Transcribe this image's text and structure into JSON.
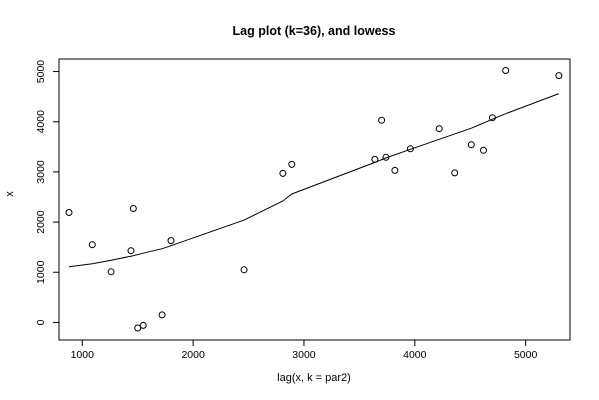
{
  "chart_data": {
    "type": "scatter",
    "title": "Lag plot (k=36), and lowess",
    "xlabel": "lag(x, k = par2)",
    "ylabel": "x",
    "xlim": [
      790,
      5400
    ],
    "ylim": [
      -350,
      5250
    ],
    "xticks": [
      1000,
      2000,
      3000,
      4000,
      5000
    ],
    "yticks": [
      0,
      1000,
      2000,
      3000,
      4000,
      5000
    ],
    "grid": false,
    "legend": "none",
    "points": [
      {
        "x": 880,
        "y": 2190
      },
      {
        "x": 1090,
        "y": 1550
      },
      {
        "x": 1260,
        "y": 1010
      },
      {
        "x": 1440,
        "y": 1430
      },
      {
        "x": 1460,
        "y": 2270
      },
      {
        "x": 1500,
        "y": -110
      },
      {
        "x": 1550,
        "y": -60
      },
      {
        "x": 1720,
        "y": 150
      },
      {
        "x": 1800,
        "y": 1630
      },
      {
        "x": 2460,
        "y": 1050
      },
      {
        "x": 2810,
        "y": 2970
      },
      {
        "x": 2890,
        "y": 3150
      },
      {
        "x": 3640,
        "y": 3250
      },
      {
        "x": 3700,
        "y": 4030
      },
      {
        "x": 3740,
        "y": 3290
      },
      {
        "x": 3820,
        "y": 3030
      },
      {
        "x": 3960,
        "y": 3460
      },
      {
        "x": 4220,
        "y": 3860
      },
      {
        "x": 4360,
        "y": 2980
      },
      {
        "x": 4510,
        "y": 3540
      },
      {
        "x": 4620,
        "y": 3430
      },
      {
        "x": 4700,
        "y": 4080
      },
      {
        "x": 4820,
        "y": 5020
      },
      {
        "x": 5300,
        "y": 4920
      }
    ],
    "lowess": [
      {
        "x": 880,
        "y": 1110
      },
      {
        "x": 1090,
        "y": 1170
      },
      {
        "x": 1260,
        "y": 1240
      },
      {
        "x": 1440,
        "y": 1320
      },
      {
        "x": 1550,
        "y": 1380
      },
      {
        "x": 1720,
        "y": 1470
      },
      {
        "x": 1800,
        "y": 1530
      },
      {
        "x": 2460,
        "y": 2040
      },
      {
        "x": 2810,
        "y": 2420
      },
      {
        "x": 2890,
        "y": 2560
      },
      {
        "x": 3640,
        "y": 3190
      },
      {
        "x": 3740,
        "y": 3280
      },
      {
        "x": 3960,
        "y": 3450
      },
      {
        "x": 4220,
        "y": 3650
      },
      {
        "x": 4510,
        "y": 3870
      },
      {
        "x": 4700,
        "y": 4050
      },
      {
        "x": 4820,
        "y": 4160
      },
      {
        "x": 5300,
        "y": 4560
      }
    ]
  }
}
